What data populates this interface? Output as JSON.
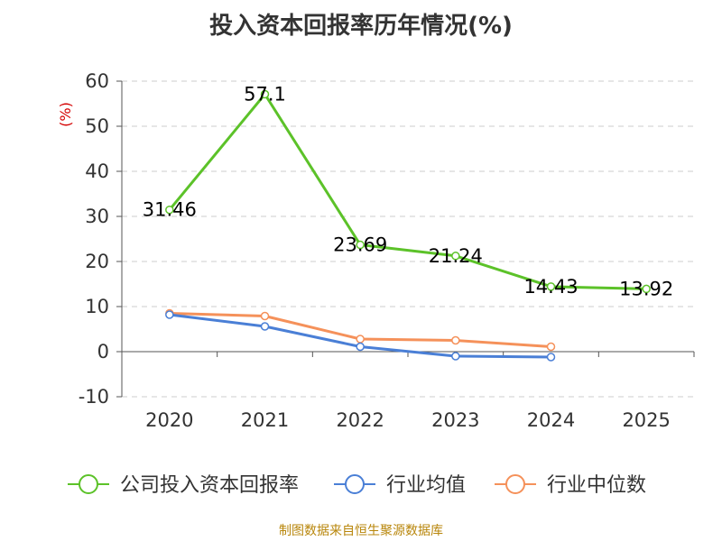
{
  "source_note": "制图数据来自恒生聚源数据库",
  "chart_data": {
    "type": "line",
    "title": "投入资本回报率历年情况(%)",
    "ylabel": "(%)",
    "xlabel": "",
    "categories": [
      "2020",
      "2021",
      "2022",
      "2023",
      "2024",
      "2025"
    ],
    "ylim": [
      -10,
      60
    ],
    "yticks": [
      -10,
      0,
      10,
      20,
      30,
      40,
      50,
      60
    ],
    "grid": "horizontal dashed",
    "legend_position": "bottom",
    "series": [
      {
        "name": "公司投入资本回报率",
        "color": "#5cc229",
        "values": [
          31.46,
          57.1,
          23.69,
          21.24,
          14.43,
          13.92
        ],
        "labels": [
          "31.46",
          "57.1",
          "23.69",
          "21.24",
          "14.43",
          "13.92"
        ]
      },
      {
        "name": "行业均值",
        "color": "#4a7fd6",
        "values": [
          8.2,
          5.6,
          1.1,
          -1.0,
          -1.2,
          null
        ]
      },
      {
        "name": "行业中位数",
        "color": "#f5915a",
        "values": [
          8.5,
          7.9,
          2.8,
          2.5,
          1.1,
          null
        ]
      }
    ]
  }
}
